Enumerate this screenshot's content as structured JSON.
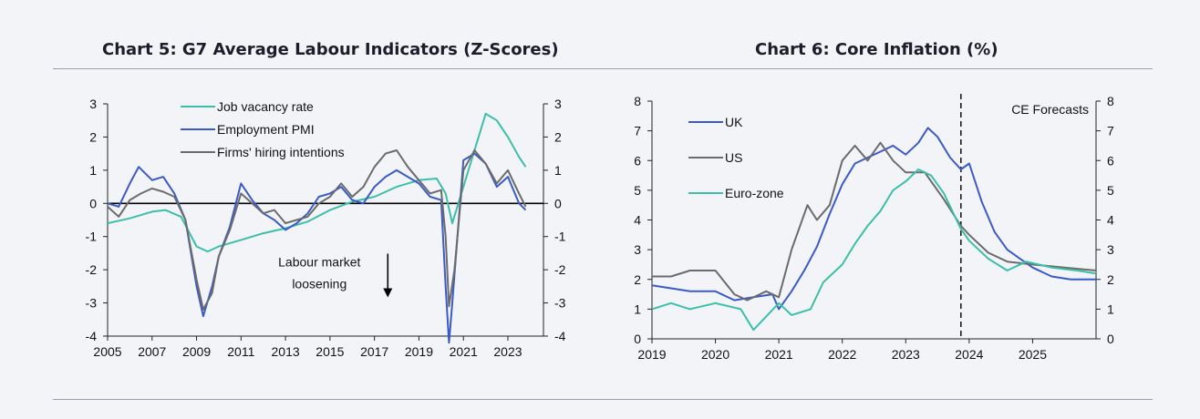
{
  "charts": {
    "left_title": "Chart 5: G7 Average Labour Indicators (Z-Scores)",
    "right_title": "Chart 6: Core Inflation (%)"
  },
  "chart_data": [
    {
      "type": "line",
      "title": "Chart 5: G7 Average Labour Indicators (Z-Scores)",
      "ylim": [
        -4,
        3
      ],
      "yticks": [
        3,
        2,
        1,
        0,
        -1,
        -2,
        -3,
        -4
      ],
      "xlim": [
        2005,
        2024.6
      ],
      "xticks": [
        "2005",
        "2007",
        "2009",
        "2011",
        "2013",
        "2015",
        "2017",
        "2019",
        "2021",
        "2023"
      ],
      "legend_position": "top-left",
      "annotation": {
        "lines": [
          "Labour market",
          "loosening"
        ],
        "x": 2017.6,
        "y": -1.9,
        "arrow": true
      },
      "zero_line": true,
      "series": [
        {
          "name": "Job vacancy rate",
          "color": "#3bbfa9",
          "x": [
            2005,
            2006,
            2007,
            2007.6,
            2008.3,
            2009,
            2009.5,
            2010,
            2011,
            2012,
            2013,
            2014,
            2015,
            2016,
            2017,
            2018,
            2019,
            2019.8,
            2020.2,
            2020.5,
            2021,
            2021.5,
            2022,
            2022.5,
            2023,
            2023.5,
            2023.8
          ],
          "y": [
            -0.6,
            -0.45,
            -0.25,
            -0.2,
            -0.4,
            -1.3,
            -1.45,
            -1.3,
            -1.1,
            -0.9,
            -0.75,
            -0.55,
            -0.2,
            0.05,
            0.2,
            0.5,
            0.7,
            0.75,
            0.3,
            -0.6,
            0.5,
            1.6,
            2.7,
            2.5,
            2.0,
            1.4,
            1.1
          ]
        },
        {
          "name": "Employment PMI",
          "color": "#3a5bc7",
          "x": [
            2005,
            2005.5,
            2006,
            2006.4,
            2007,
            2007.5,
            2008,
            2008.5,
            2009,
            2009.3,
            2009.7,
            2010,
            2010.5,
            2011,
            2011.5,
            2012,
            2012.5,
            2013,
            2013.5,
            2014,
            2014.5,
            2015,
            2015.5,
            2016,
            2016.5,
            2017,
            2017.5,
            2018,
            2018.5,
            2019,
            2019.5,
            2020,
            2020.2,
            2020.35,
            2020.5,
            2021,
            2021.5,
            2022,
            2022.5,
            2023,
            2023.5,
            2023.8
          ],
          "y": [
            0,
            -0.1,
            0.6,
            1.1,
            0.7,
            0.8,
            0.3,
            -0.5,
            -2.5,
            -3.4,
            -2.5,
            -1.6,
            -0.7,
            0.6,
            0.1,
            -0.3,
            -0.5,
            -0.8,
            -0.6,
            -0.3,
            0.2,
            0.3,
            0.5,
            0.1,
            0,
            0.5,
            0.8,
            1.0,
            0.8,
            0.6,
            0.2,
            0.1,
            -2.5,
            -4.2,
            -3.0,
            1.3,
            1.5,
            1.2,
            0.5,
            0.8,
            0,
            -0.2
          ]
        },
        {
          "name": "Firms' hiring intentions",
          "color": "#6b6b6b",
          "x": [
            2005,
            2005.5,
            2006,
            2006.5,
            2007,
            2007.5,
            2008,
            2008.5,
            2009,
            2009.3,
            2009.7,
            2010,
            2010.5,
            2011,
            2011.5,
            2012,
            2012.5,
            2013,
            2013.5,
            2014,
            2014.5,
            2015,
            2015.5,
            2016,
            2016.5,
            2017,
            2017.5,
            2018,
            2018.5,
            2019,
            2019.5,
            2020,
            2020.2,
            2020.35,
            2020.6,
            2021,
            2021.5,
            2022,
            2022.5,
            2023,
            2023.5,
            2023.8
          ],
          "y": [
            -0.1,
            -0.4,
            0.1,
            0.3,
            0.45,
            0.35,
            0.2,
            -0.5,
            -2.3,
            -3.2,
            -2.7,
            -1.6,
            -0.8,
            0.3,
            0,
            -0.3,
            -0.2,
            -0.6,
            -0.5,
            -0.4,
            0,
            0.2,
            0.6,
            0.2,
            0.5,
            1.1,
            1.5,
            1.6,
            1.1,
            0.7,
            0.3,
            0.4,
            -1.0,
            -3.1,
            -2.0,
            1.0,
            1.6,
            1.2,
            0.6,
            1.0,
            0.3,
            -0.1
          ]
        }
      ]
    },
    {
      "type": "line",
      "title": "Chart 6: Core Inflation (%)",
      "ylim": [
        0,
        8
      ],
      "yticks": [
        8,
        7,
        6,
        5,
        4,
        3,
        2,
        1,
        0
      ],
      "xlim": [
        2019,
        2026
      ],
      "xticks": [
        "2019",
        "2020",
        "2021",
        "2022",
        "2023",
        "2024",
        "2025"
      ],
      "legend_position": "top-left",
      "forecast_line": {
        "x": 2023.87,
        "label": "CE Forecasts"
      },
      "series": [
        {
          "name": "UK",
          "color": "#3a5bc7",
          "x": [
            2019,
            2019.3,
            2019.6,
            2020,
            2020.3,
            2020.6,
            2020.9,
            2021,
            2021.2,
            2021.4,
            2021.6,
            2021.8,
            2022,
            2022.2,
            2022.4,
            2022.6,
            2022.8,
            2023,
            2023.2,
            2023.35,
            2023.5,
            2023.7,
            2023.87,
            2024,
            2024.2,
            2024.4,
            2024.6,
            2024.8,
            2025,
            2025.3,
            2025.6,
            2026
          ],
          "y": [
            1.8,
            1.7,
            1.6,
            1.6,
            1.3,
            1.4,
            1.5,
            1.0,
            1.6,
            2.3,
            3.1,
            4.2,
            5.2,
            5.9,
            6.1,
            6.3,
            6.5,
            6.2,
            6.6,
            7.1,
            6.8,
            6.1,
            5.7,
            5.9,
            4.6,
            3.6,
            3.0,
            2.7,
            2.4,
            2.1,
            2.0,
            2.0
          ]
        },
        {
          "name": "US",
          "color": "#6b6b6b",
          "x": [
            2019,
            2019.3,
            2019.6,
            2020,
            2020.3,
            2020.5,
            2020.8,
            2021,
            2021.2,
            2021.45,
            2021.6,
            2021.8,
            2022,
            2022.2,
            2022.4,
            2022.6,
            2022.8,
            2023,
            2023.3,
            2023.6,
            2023.87,
            2024,
            2024.3,
            2024.6,
            2025,
            2025.5,
            2026
          ],
          "y": [
            2.1,
            2.1,
            2.3,
            2.3,
            1.5,
            1.3,
            1.6,
            1.4,
            3.0,
            4.5,
            4.0,
            4.5,
            6.0,
            6.5,
            6.0,
            6.6,
            6.0,
            5.6,
            5.6,
            4.7,
            3.8,
            3.5,
            2.9,
            2.6,
            2.5,
            2.4,
            2.3
          ]
        },
        {
          "name": "Euro-zone",
          "color": "#3bbfa9",
          "x": [
            2019,
            2019.3,
            2019.6,
            2020,
            2020.4,
            2020.6,
            2021,
            2021.2,
            2021.5,
            2021.7,
            2022,
            2022.2,
            2022.4,
            2022.6,
            2022.8,
            2023,
            2023.2,
            2023.4,
            2023.6,
            2023.87,
            2024,
            2024.3,
            2024.6,
            2024.9,
            2025.3,
            2025.7,
            2026
          ],
          "y": [
            1.0,
            1.2,
            1.0,
            1.2,
            1.0,
            0.3,
            1.2,
            0.8,
            1.0,
            1.9,
            2.5,
            3.2,
            3.8,
            4.3,
            5.0,
            5.3,
            5.7,
            5.5,
            4.9,
            3.7,
            3.3,
            2.7,
            2.3,
            2.6,
            2.4,
            2.3,
            2.2
          ]
        }
      ]
    }
  ]
}
